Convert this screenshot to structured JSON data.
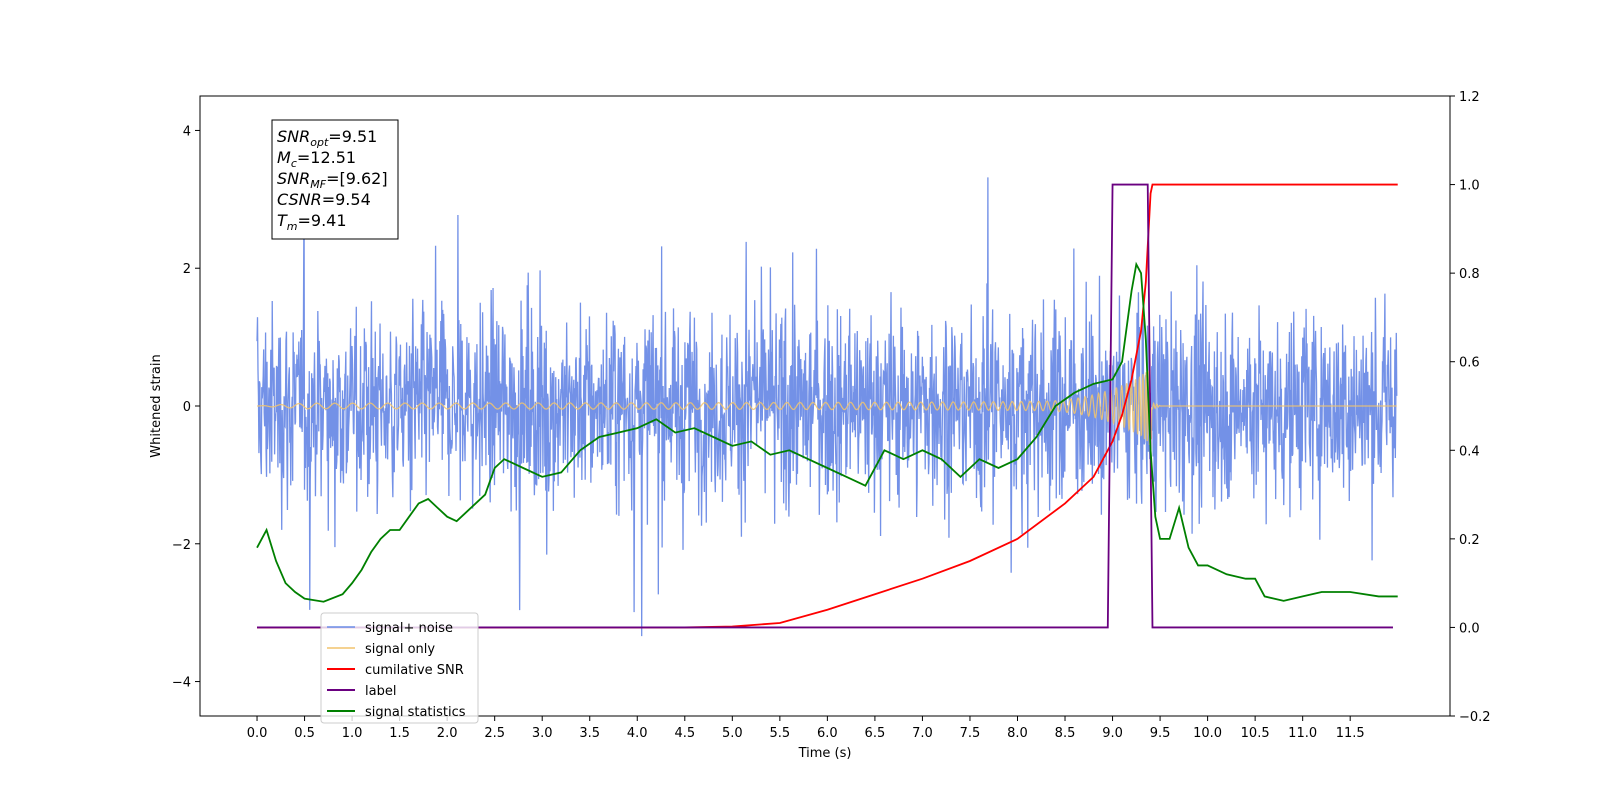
{
  "chart_data": {
    "type": "line",
    "xlabel": "Time (s)",
    "ylabel": "Whitened strain",
    "xlim": [
      -0.6,
      12.55
    ],
    "ylim": [
      -4.5,
      4.5
    ],
    "y2lim": [
      -0.2,
      1.2
    ],
    "x_ticks": [
      "0.0",
      "0.5",
      "1.0",
      "1.5",
      "2.0",
      "2.5",
      "3.0",
      "3.5",
      "4.0",
      "4.5",
      "5.0",
      "5.5",
      "6.0",
      "6.5",
      "7.0",
      "7.5",
      "8.0",
      "8.5",
      "9.0",
      "9.5",
      "10.0",
      "10.5",
      "11.0",
      "11.5"
    ],
    "y_ticks": [
      "4",
      "2",
      "0",
      "−2",
      "−4"
    ],
    "y2_ticks": [
      "1.2",
      "1.0",
      "0.8",
      "0.6",
      "0.4",
      "0.2",
      "0.0",
      "−0.2"
    ],
    "annotation_lines": [
      {
        "base": "SNR",
        "sub": "opt",
        "value": "=9.51"
      },
      {
        "base": "M",
        "sub": "c",
        "value": "=12.51"
      },
      {
        "base": "SNR",
        "sub": "MF",
        "value": "=[9.62]"
      },
      {
        "base": "CSNR",
        "sub": "",
        "value": "=9.54"
      },
      {
        "base": "T",
        "sub": "m",
        "value": "=9.41"
      }
    ],
    "legend_position": "lower-left",
    "series": [
      {
        "name": "signal+ noise",
        "color": "#6B8BE6",
        "axis": "left",
        "description_amplitude": "noise roughly ±2, peaks to ±4"
      },
      {
        "name": "signal only",
        "color": "#F2C46D",
        "axis": "left",
        "chirp_end": 9.41
      },
      {
        "name": "cumilative SNR",
        "color": "#FF0000",
        "axis": "right",
        "x": [
          0,
          4.5,
          5.0,
          5.5,
          6.0,
          6.5,
          7.0,
          7.5,
          8.0,
          8.5,
          8.8,
          9.0,
          9.1,
          9.2,
          9.3,
          9.35,
          9.4,
          9.42,
          12.0
        ],
        "y": [
          0,
          0,
          0.002,
          0.01,
          0.04,
          0.075,
          0.11,
          0.15,
          0.2,
          0.28,
          0.34,
          0.42,
          0.48,
          0.56,
          0.67,
          0.78,
          0.98,
          1.0,
          1.0
        ]
      },
      {
        "name": "label",
        "color": "#6A0080",
        "axis": "right",
        "x": [
          0,
          8.95,
          9.0,
          9.37,
          9.42,
          11.95
        ],
        "y": [
          0,
          0,
          1,
          1,
          0,
          0
        ]
      },
      {
        "name": "signal statistics",
        "color": "#008000",
        "axis": "right",
        "x": [
          0,
          0.1,
          0.2,
          0.3,
          0.4,
          0.5,
          0.7,
          0.9,
          1.0,
          1.1,
          1.2,
          1.3,
          1.4,
          1.5,
          1.6,
          1.7,
          1.8,
          1.9,
          2.0,
          2.1,
          2.2,
          2.3,
          2.4,
          2.5,
          2.6,
          2.7,
          2.8,
          3.0,
          3.2,
          3.4,
          3.6,
          3.8,
          4.0,
          4.2,
          4.4,
          4.6,
          4.8,
          5.0,
          5.2,
          5.4,
          5.6,
          5.8,
          6.0,
          6.2,
          6.4,
          6.6,
          6.8,
          7.0,
          7.2,
          7.4,
          7.6,
          7.8,
          8.0,
          8.2,
          8.4,
          8.6,
          8.8,
          9.0,
          9.1,
          9.2,
          9.25,
          9.3,
          9.35,
          9.4,
          9.45,
          9.5,
          9.6,
          9.7,
          9.8,
          9.9,
          10.0,
          10.2,
          10.4,
          10.5,
          10.6,
          10.8,
          11.0,
          11.2,
          11.5,
          11.8,
          12.0
        ],
        "y": [
          0.18,
          0.22,
          0.15,
          0.1,
          0.08,
          0.065,
          0.058,
          0.075,
          0.1,
          0.13,
          0.17,
          0.2,
          0.22,
          0.22,
          0.25,
          0.28,
          0.29,
          0.27,
          0.25,
          0.24,
          0.26,
          0.28,
          0.3,
          0.36,
          0.38,
          0.37,
          0.36,
          0.34,
          0.35,
          0.4,
          0.43,
          0.44,
          0.45,
          0.47,
          0.44,
          0.45,
          0.43,
          0.41,
          0.42,
          0.39,
          0.4,
          0.38,
          0.36,
          0.34,
          0.32,
          0.4,
          0.38,
          0.4,
          0.38,
          0.34,
          0.38,
          0.36,
          0.38,
          0.43,
          0.5,
          0.53,
          0.55,
          0.56,
          0.6,
          0.76,
          0.82,
          0.8,
          0.65,
          0.4,
          0.25,
          0.2,
          0.2,
          0.27,
          0.18,
          0.14,
          0.14,
          0.12,
          0.11,
          0.11,
          0.07,
          0.06,
          0.07,
          0.08,
          0.08,
          0.07,
          0.07
        ]
      }
    ]
  }
}
